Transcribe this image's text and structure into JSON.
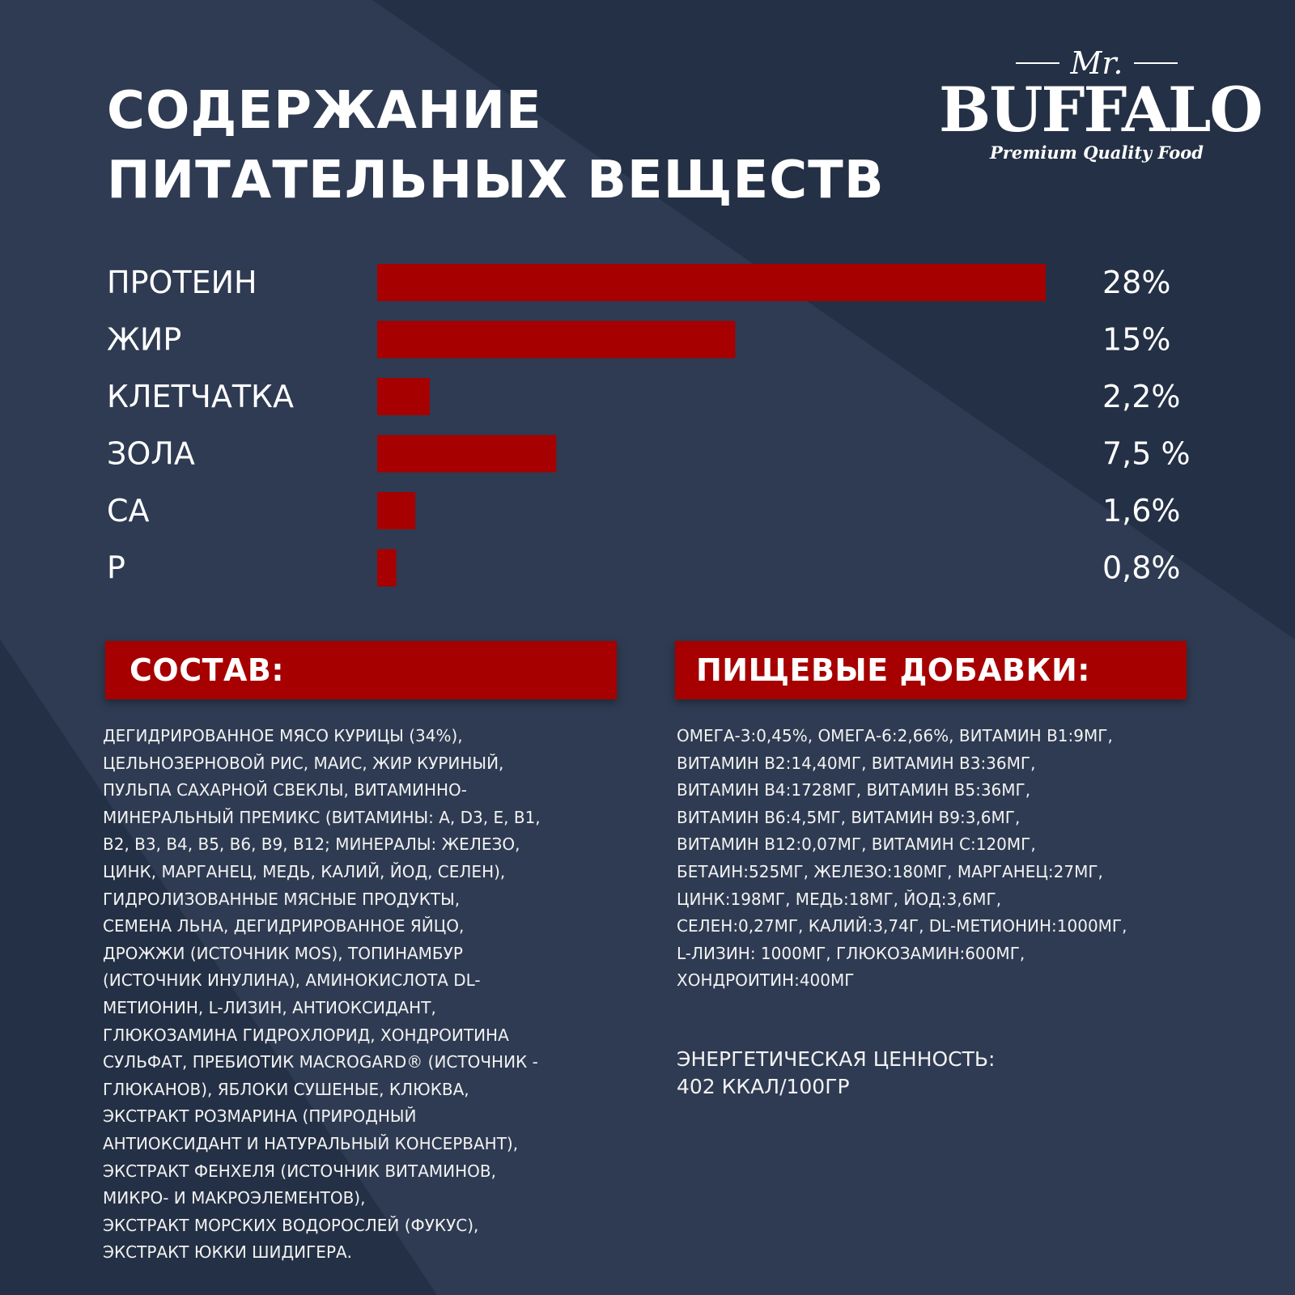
{
  "colors": {
    "background": "#2e3b52",
    "background_dark": "#243045",
    "accent_red": "#a60000",
    "text": "#ffffff"
  },
  "title": {
    "line1": "СОДЕРЖАНИЕ",
    "line2": "ПИТАТЕЛЬНЫХ ВЕЩЕСТВ"
  },
  "logo": {
    "mr": "Mr.",
    "brand": "BUFFALO",
    "tagline": "Premium Quality Food"
  },
  "chart_data": {
    "type": "bar",
    "orientation": "horizontal",
    "categories": [
      "ПРОТЕИН",
      "ЖИР",
      "КЛЕТЧАТКА",
      "ЗОЛА",
      "CA",
      "P"
    ],
    "values": [
      28,
      15,
      2.2,
      7.5,
      1.6,
      0.8
    ],
    "value_labels": [
      "28%",
      "15%",
      "2,2%",
      "7,5 %",
      "1,6%",
      "0,8%"
    ],
    "unit": "%",
    "xlim": [
      0,
      28
    ],
    "grid": false,
    "bar_color": "#a60000"
  },
  "composition": {
    "header": "СОСТАВ:",
    "lines": [
      "ДЕГИДРИРОВАННОЕ МЯСО КУРИЦЫ (34%),",
      "ЦЕЛЬНОЗЕРНОВОЙ РИС, МАИС, ЖИР КУРИНЫЙ,",
      "ПУЛЬПА САХАРНОЙ СВЕКЛЫ, ВИТАМИННО-",
      "МИНЕРАЛЬНЫЙ ПРЕМИКС (ВИТАМИНЫ: A, D3, E, B1,",
      "B2, B3, B4, B5, B6, B9, B12; МИНЕРАЛЫ: ЖЕЛЕЗО,",
      "ЦИНК, МАРГАНЕЦ, МЕДЬ, КАЛИЙ, ЙОД, СЕЛЕН),",
      "ГИДРОЛИЗОВАННЫЕ МЯСНЫЕ ПРОДУКТЫ,",
      "СЕМЕНА ЛЬНА, ДЕГИДРИРОВАННОЕ ЯЙЦО,",
      "ДРОЖЖИ (ИСТОЧНИК MOS), ТОПИНАМБУР",
      "(ИСТОЧНИК ИНУЛИНА), АМИНОКИСЛОТА DL-",
      "МЕТИОНИН, L-ЛИЗИН, АНТИОКСИДАНТ,",
      "ГЛЮКОЗАМИНА ГИДРОХЛОРИД, ХОНДРОИТИНА",
      "СУЛЬФАТ, ПРЕБИОТИК MACROGARD® (ИСТОЧНИК  -",
      "ГЛЮКАНОВ), ЯБЛОКИ СУШЕНЫЕ, КЛЮКВА,",
      "ЭКСТРАКТ РОЗМАРИНА (ПРИРОДНЫЙ",
      "АНТИОКСИДАНТ И НАТУРАЛЬНЫЙ КОНСЕРВАНТ),",
      "ЭКСТРАКТ ФЕНХЕЛЯ (ИСТОЧНИК ВИТАМИНОВ,",
      "МИКРО- И МАКРОЭЛЕМЕНТОВ),",
      "ЭКСТРАКТ МОРСКИХ ВОДОРОСЛЕЙ (ФУКУС),",
      "ЭКСТРАКТ ЮККИ ШИДИГЕРА."
    ]
  },
  "additives": {
    "header": "ПИЩЕВЫЕ ДОБАВКИ:",
    "lines": [
      "ОМЕГА-3:0,45%, ОМЕГА-6:2,66%, ВИТАМИН B1:9МГ,",
      "ВИТАМИН B2:14,40МГ, ВИТАМИН B3:36МГ,",
      "ВИТАМИН B4:1728МГ, ВИТАМИН B5:36МГ,",
      "ВИТАМИН B6:4,5МГ, ВИТАМИН B9:3,6МГ,",
      "ВИТАМИН B12:0,07МГ, ВИТАМИН C:120МГ,",
      "БЕТАИН:525МГ, ЖЕЛЕЗО:180МГ, МАРГАНЕЦ:27МГ,",
      "ЦИНК:198МГ, МЕДЬ:18МГ, ЙОД:3,6МГ,",
      "СЕЛЕН:0,27МГ, КАЛИЙ:3,74Г, DL-МЕТИОНИН:1000МГ,",
      "L-ЛИЗИН: 1000МГ, ГЛЮКОЗАМИН:600МГ,",
      "ХОНДРОИТИН:400МГ"
    ]
  },
  "energy": {
    "line1": "ЭНЕРГЕТИЧЕСКАЯ ЦЕННОСТЬ:",
    "line2": "402 ККАЛ/100ГР"
  }
}
